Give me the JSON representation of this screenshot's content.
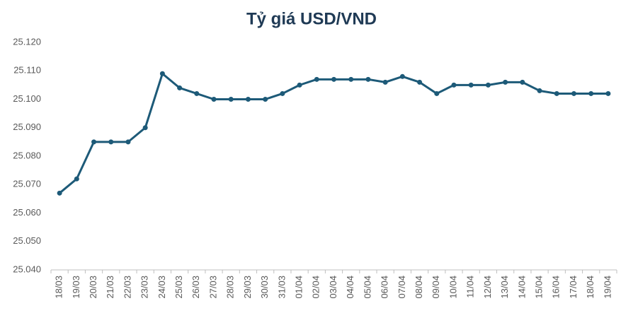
{
  "chart_data": {
    "type": "line",
    "title": "Tỷ giá USD/VND",
    "categories": [
      "18/03",
      "19/03",
      "20/03",
      "21/03",
      "22/03",
      "23/03",
      "24/03",
      "25/03",
      "26/03",
      "27/03",
      "28/03",
      "29/03",
      "30/03",
      "31/03",
      "01/04",
      "02/04",
      "03/04",
      "04/04",
      "05/04",
      "06/04",
      "07/04",
      "08/04",
      "09/04",
      "10/04",
      "11/04",
      "12/04",
      "13/04",
      "14/04",
      "15/04",
      "16/04",
      "17/04",
      "18/04",
      "19/04"
    ],
    "values": [
      25067,
      25072,
      25085,
      25085,
      25085,
      25090,
      25109,
      25104,
      25102,
      25100,
      25100,
      25100,
      25100,
      25102,
      25105,
      25107,
      25107,
      25107,
      25107,
      25106,
      25108,
      25106,
      25102,
      25105,
      25105,
      25105,
      25106,
      25106,
      25103,
      25102,
      25102,
      25102,
      25102
    ],
    "color": "#1d5a78",
    "ylim": [
      25040,
      25120
    ],
    "yticks": [
      {
        "value": 25040,
        "label": "25.040"
      },
      {
        "value": 25050,
        "label": "25.050"
      },
      {
        "value": 25060,
        "label": "25.060"
      },
      {
        "value": 25070,
        "label": "25.070"
      },
      {
        "value": 25080,
        "label": "25.080"
      },
      {
        "value": 25090,
        "label": "25.090"
      },
      {
        "value": 25100,
        "label": "25.100"
      },
      {
        "value": 25110,
        "label": "25.110"
      },
      {
        "value": 25120,
        "label": "25.120"
      }
    ],
    "grid": false
  }
}
